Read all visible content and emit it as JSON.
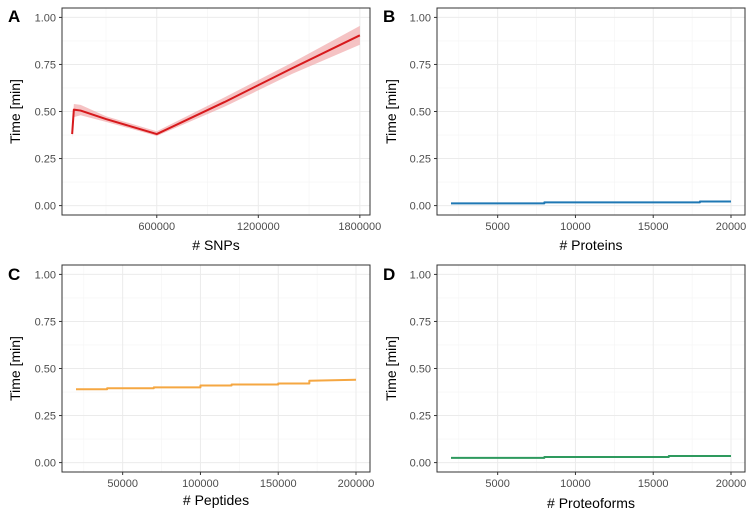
{
  "chart_data": [
    {
      "type": "line",
      "panel": "A",
      "xlabel": "# SNPs",
      "ylabel": "Time [min]",
      "xlim": [
        40000,
        1860000
      ],
      "ylim": [
        -0.05,
        1.05
      ],
      "xticks": [
        600000,
        1200000,
        1800000
      ],
      "xtick_labels": [
        "600000",
        "1200000",
        "1800000"
      ],
      "yticks": [
        0,
        0.25,
        0.5,
        0.75,
        1.0
      ],
      "ytick_labels": [
        "0.00",
        "0.25",
        "0.50",
        "0.75",
        "1.00"
      ],
      "color": "#d7191c",
      "ribbon_color": "#f0a3a5",
      "series": [
        {
          "x": [
            100000,
            110000,
            150000,
            300000,
            600000,
            1000000,
            1400000,
            1800000
          ],
          "y": [
            0.38,
            0.51,
            0.505,
            0.46,
            0.38,
            0.55,
            0.73,
            0.905
          ],
          "lower": [
            0.36,
            0.47,
            0.48,
            0.445,
            0.37,
            0.525,
            0.7,
            0.855
          ],
          "upper": [
            0.4,
            0.54,
            0.535,
            0.475,
            0.395,
            0.575,
            0.76,
            0.955
          ]
        }
      ]
    },
    {
      "type": "line",
      "panel": "B",
      "xlabel": "# Proteins",
      "ylabel": "Time [min]",
      "xlim": [
        1100,
        20900
      ],
      "ylim": [
        -0.05,
        1.05
      ],
      "xticks": [
        5000,
        10000,
        15000,
        20000
      ],
      "xtick_labels": [
        "5000",
        "10000",
        "15000",
        "20000"
      ],
      "yticks": [
        0,
        0.25,
        0.5,
        0.75,
        1.0
      ],
      "ytick_labels": [
        "0.00",
        "0.25",
        "0.50",
        "0.75",
        "1.00"
      ],
      "color": "#1f78b4",
      "series": [
        {
          "x": [
            2000,
            8000,
            8000,
            18000,
            18000,
            20000
          ],
          "y": [
            0.012,
            0.012,
            0.017,
            0.017,
            0.022,
            0.022
          ]
        }
      ]
    },
    {
      "type": "line",
      "panel": "C",
      "xlabel": "# Peptides",
      "ylabel": "Time [min]",
      "xlim": [
        11000,
        209000
      ],
      "ylim": [
        -0.05,
        1.05
      ],
      "xticks": [
        50000,
        100000,
        150000,
        200000
      ],
      "xtick_labels": [
        "50000",
        "100000",
        "150000",
        "200000"
      ],
      "yticks": [
        0,
        0.25,
        0.5,
        0.75,
        1.0
      ],
      "ytick_labels": [
        "0.00",
        "0.25",
        "0.50",
        "0.75",
        "1.00"
      ],
      "color": "#f5a742",
      "series": [
        {
          "x": [
            20000,
            40000,
            40000,
            70000,
            70000,
            100000,
            100000,
            120000,
            120000,
            150000,
            150000,
            170000,
            170000,
            200000
          ],
          "y": [
            0.39,
            0.39,
            0.395,
            0.395,
            0.4,
            0.4,
            0.41,
            0.41,
            0.415,
            0.415,
            0.42,
            0.42,
            0.435,
            0.44
          ]
        }
      ]
    },
    {
      "type": "line",
      "panel": "D",
      "xlabel": "# Proteoforms",
      "ylabel": "Time [min]",
      "xlim": [
        1100,
        20900
      ],
      "ylim": [
        -0.05,
        1.05
      ],
      "xticks": [
        5000,
        10000,
        15000,
        20000
      ],
      "xtick_labels": [
        "5000",
        "10000",
        "15000",
        "20000"
      ],
      "yticks": [
        0,
        0.25,
        0.5,
        0.75,
        1.0
      ],
      "ytick_labels": [
        "0.00",
        "0.25",
        "0.50",
        "0.75",
        "1.00"
      ],
      "color": "#2e9a5e",
      "series": [
        {
          "x": [
            2000,
            8000,
            8000,
            16000,
            16000,
            20000
          ],
          "y": [
            0.025,
            0.025,
            0.03,
            0.03,
            0.035,
            0.035
          ]
        }
      ]
    }
  ]
}
